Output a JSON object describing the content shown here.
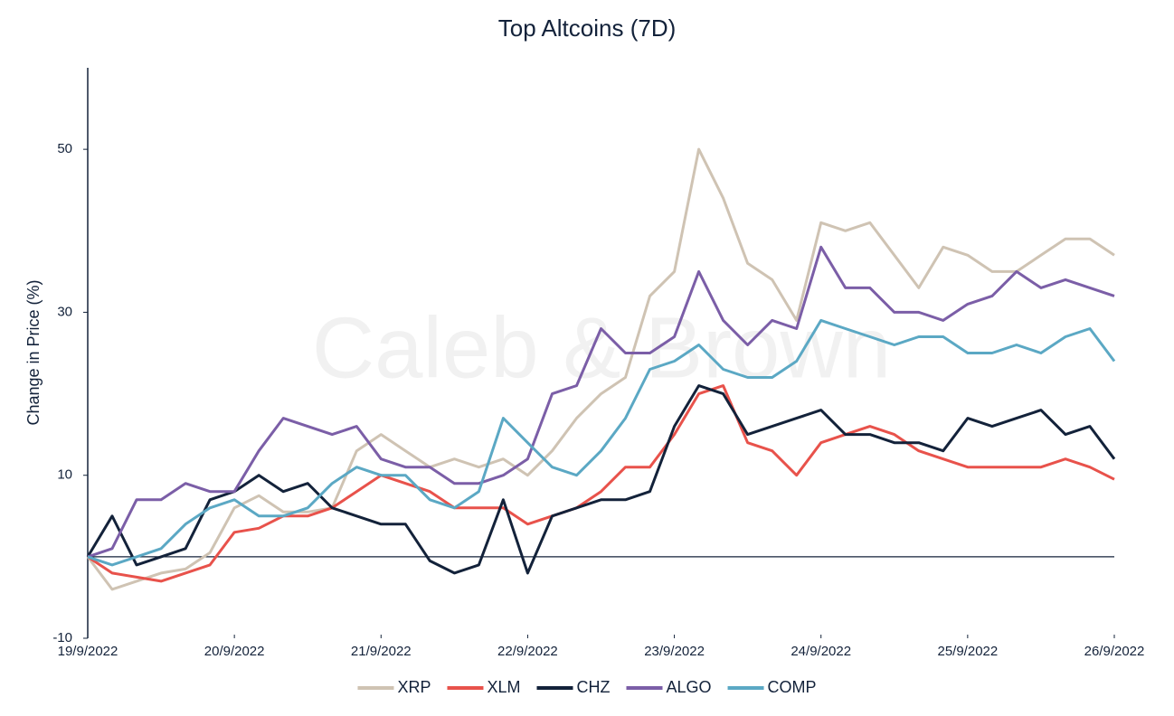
{
  "chart_data": {
    "type": "line",
    "title": "Top Altcoins (7D)",
    "ylabel": "Change in Price (%)",
    "watermark": "Caleb & Brown",
    "x": [
      0,
      4,
      8,
      12,
      16,
      20,
      24,
      28,
      32,
      36,
      40,
      44,
      48,
      52,
      56,
      60,
      64,
      68,
      72,
      76,
      80,
      84,
      88,
      92,
      96,
      100,
      104,
      108,
      112,
      116,
      120,
      124,
      128,
      132,
      136,
      140,
      144,
      148,
      152,
      156,
      160,
      164,
      168
    ],
    "xlim": [
      0,
      168
    ],
    "xticks": [
      {
        "value": 0,
        "label": "19/9/2022"
      },
      {
        "value": 24,
        "label": "20/9/2022"
      },
      {
        "value": 48,
        "label": "21/9/2022"
      },
      {
        "value": 72,
        "label": "22/9/2022"
      },
      {
        "value": 96,
        "label": "23/9/2022"
      },
      {
        "value": 120,
        "label": "24/9/2022"
      },
      {
        "value": 144,
        "label": "25/9/2022"
      },
      {
        "value": 168,
        "label": "26/9/2022"
      }
    ],
    "ylim": [
      -10,
      60
    ],
    "yticks": [
      -10,
      10,
      30,
      50
    ],
    "series": [
      {
        "name": "XRP",
        "color": "#cfc3b3",
        "values": [
          0,
          -4,
          -3,
          -2,
          -1.5,
          0.5,
          6,
          7.5,
          5.5,
          5.5,
          6,
          13,
          15,
          13,
          11,
          12,
          11,
          12,
          10,
          13,
          17,
          20,
          22,
          32,
          35,
          50,
          44,
          36,
          34,
          29,
          41,
          40,
          41,
          37,
          33,
          38,
          37,
          35,
          35,
          37,
          39,
          39,
          37
        ]
      },
      {
        "name": "XLM",
        "color": "#e8524b",
        "values": [
          0,
          -2,
          -2.5,
          -3,
          -2,
          -1,
          3,
          3.5,
          5,
          5,
          6,
          8,
          10,
          9,
          8,
          6,
          6,
          6,
          4,
          5,
          6,
          8,
          11,
          11,
          15,
          20,
          21,
          14,
          13,
          10,
          14,
          15,
          16,
          15,
          13,
          12,
          11,
          11,
          11,
          11,
          12,
          11,
          9.5
        ]
      },
      {
        "name": "CHZ",
        "color": "#13223a",
        "values": [
          0,
          5,
          -1,
          0,
          1,
          7,
          8,
          10,
          8,
          9,
          6,
          5,
          4,
          4,
          -0.5,
          -2,
          -1,
          7,
          -2,
          5,
          6,
          7,
          7,
          8,
          16,
          21,
          20,
          15,
          16,
          17,
          18,
          15,
          15,
          14,
          14,
          13,
          17,
          16,
          17,
          18,
          15,
          16,
          12
        ]
      },
      {
        "name": "ALGO",
        "color": "#7b5ea7",
        "values": [
          0,
          1,
          7,
          7,
          9,
          8,
          8,
          13,
          17,
          16,
          15,
          16,
          12,
          11,
          11,
          9,
          9,
          10,
          12,
          20,
          21,
          28,
          25,
          25,
          27,
          35,
          29,
          26,
          29,
          28,
          38,
          33,
          33,
          30,
          30,
          29,
          31,
          32,
          35,
          33,
          34,
          33,
          32
        ]
      },
      {
        "name": "COMP",
        "color": "#5ba8c4",
        "values": [
          0,
          -1,
          0,
          1,
          4,
          6,
          7,
          5,
          5,
          6,
          9,
          11,
          10,
          10,
          7,
          6,
          8,
          17,
          14,
          11,
          10,
          13,
          17,
          23,
          24,
          26,
          23,
          22,
          22,
          24,
          29,
          28,
          27,
          26,
          27,
          27,
          25,
          25,
          26,
          25,
          27,
          28,
          24
        ]
      }
    ]
  }
}
